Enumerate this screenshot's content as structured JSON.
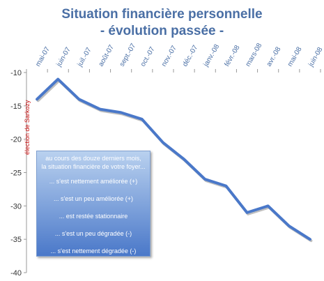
{
  "chart_data": {
    "type": "line",
    "title_line1": "Situation financière personnelle",
    "title_line2": "- évolution passée -",
    "categories": [
      "mai-07",
      "juin-07",
      "juil.-07",
      "août-07",
      "sept.-07",
      "oct.-07",
      "nov.-07",
      "déc.-07",
      "janv.-08",
      "févr.-08",
      "mars-08",
      "avr.-08",
      "mai-08",
      "juin-08"
    ],
    "values": [
      -14,
      -11,
      -14,
      -15.5,
      -16,
      -17,
      -20.5,
      -23,
      -26,
      -27,
      -31,
      -30,
      -33,
      -35
    ],
    "ylim": [
      -40,
      -10
    ],
    "yticks": [
      -10,
      -15,
      -20,
      -25,
      -30,
      -35,
      -40
    ],
    "grid": false,
    "series_color": "#4a78c9",
    "annotation": "élection de Sarkozy",
    "legend_box": {
      "header_line1": "au cours des douze derniers mois,",
      "header_line2": "la situation financière de votre foyer...",
      "items": [
        "... s'est nettement améliorée (+)",
        "... s'est un peu améliorée (+)",
        "... est restée stationnaire",
        "... s'est un peu dégradée (-)",
        "... s'est nettement dégradée (-)"
      ]
    }
  }
}
